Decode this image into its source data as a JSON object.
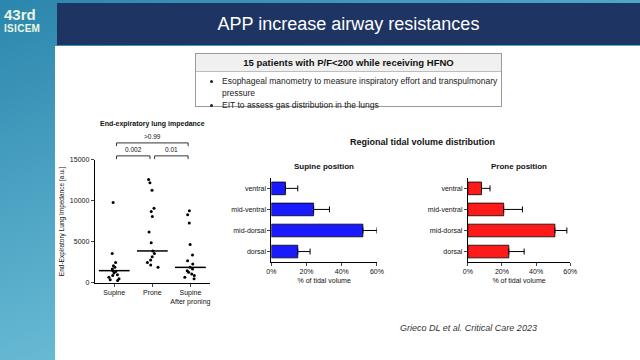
{
  "logo": {
    "edition": "43rd",
    "name": "ISICEM"
  },
  "header": {
    "title": "APP increase airway resistances"
  },
  "box": {
    "title": "15 patients with P/F<200 while receiving HFNO",
    "bullets": [
      "Esophageal manometry to measure inspiratory effort and transpulmonary pressure",
      "EIT to assess gas distribution in the lungs"
    ]
  },
  "figure_title": "Regional tidal volume distribution",
  "chart_data": [
    {
      "type": "scatter",
      "title": "End-expiratory lung impedance",
      "ylabel": "End-Expiratory Lung Impedance [a.u.]",
      "categories": [
        "Supine",
        "Prone",
        "Supine\nAfter proning"
      ],
      "values": [
        [
          9800,
          3600,
          2500,
          2100,
          1900,
          1700,
          1500,
          1400,
          1200,
          1000,
          900,
          700,
          500,
          400,
          300
        ],
        [
          12600,
          12200,
          11300,
          9100,
          8700,
          8100,
          6200,
          4900,
          3900,
          3600,
          3200,
          2800,
          2500,
          2200,
          1900
        ],
        [
          8800,
          8300,
          7300,
          4700,
          3400,
          2700,
          2300,
          1900,
          1700,
          1500,
          1300,
          1100,
          900,
          700,
          500
        ]
      ],
      "medians": [
        1500,
        3900,
        1900
      ],
      "color": "#000000",
      "marker": "circle",
      "ylim": [
        0,
        15000
      ],
      "yticks": [
        0,
        5000,
        10000,
        15000
      ],
      "comparisons": [
        {
          "from": "Supine",
          "to": "Supine\nAfter proning",
          "label": ">0.99"
        },
        {
          "from": "Supine",
          "to": "Prone",
          "label": "0.002"
        },
        {
          "from": "Prone",
          "to": "Supine\nAfter proning",
          "label": "0.01"
        }
      ]
    },
    {
      "type": "bar",
      "orientation": "horizontal",
      "title": "Supine position",
      "xlabel": "% of tidal volume",
      "categories": [
        "ventral",
        "mid-ventral",
        "mid-dorsal",
        "dorsal"
      ],
      "values": [
        8,
        24,
        52,
        15
      ],
      "errors": [
        7,
        9,
        8,
        7
      ],
      "color": "#1a1aff",
      "xlim": [
        0,
        60
      ],
      "xticks": [
        {
          "value": 0,
          "label": "0%"
        },
        {
          "value": 20,
          "label": "20%"
        },
        {
          "value": 40,
          "label": "40%"
        },
        {
          "value": 60,
          "label": "60%"
        }
      ]
    },
    {
      "type": "bar",
      "orientation": "horizontal",
      "title": "Prone position",
      "xlabel": "% of tidal volume",
      "categories": [
        "ventral",
        "mid-ventral",
        "mid-dorsal",
        "dorsal"
      ],
      "values": [
        8,
        21,
        51,
        24
      ],
      "errors": [
        5,
        11,
        7,
        9
      ],
      "color": "#ff1a1a",
      "xlim": [
        0,
        60
      ],
      "xticks": [
        {
          "value": 0,
          "label": "0%"
        },
        {
          "value": 20,
          "label": "20%"
        },
        {
          "value": 40,
          "label": "40%"
        },
        {
          "value": 60,
          "label": "60%"
        }
      ]
    }
  ],
  "citation": "Grieco DL et al. Critical Care 2023"
}
